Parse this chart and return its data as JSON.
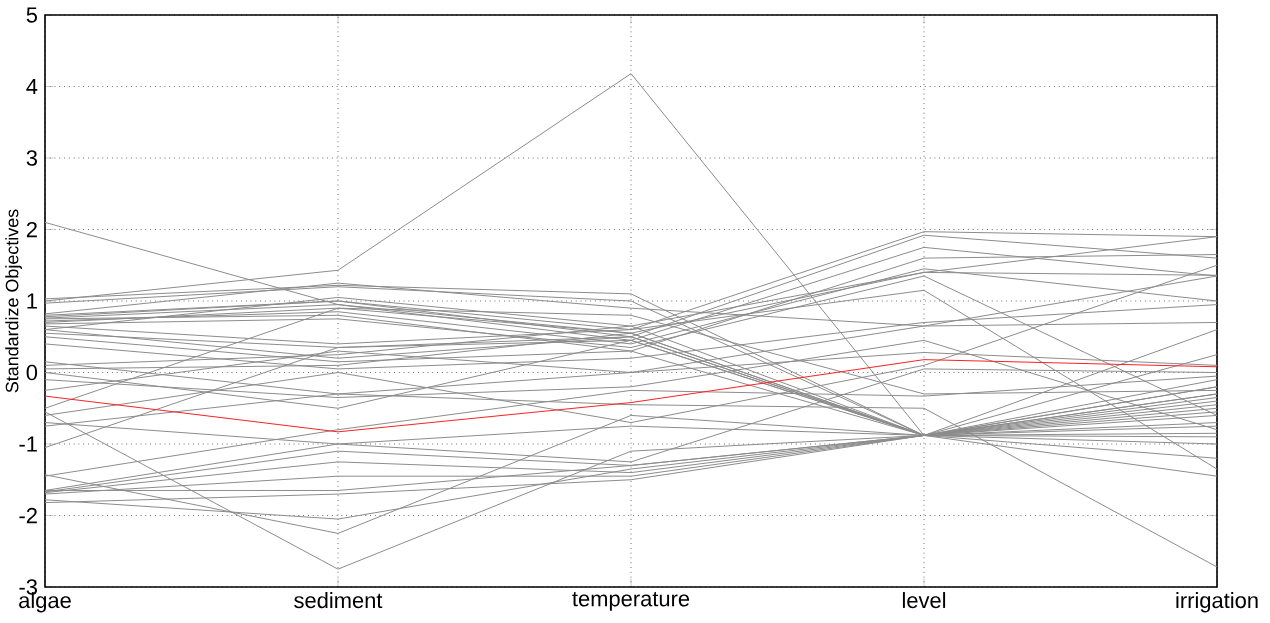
{
  "chart_data": {
    "type": "line",
    "ylabel": "Standardize Objectives",
    "categories": [
      "algae",
      "sediment",
      "temperature",
      "level",
      "irrigation"
    ],
    "ylim": [
      -3,
      5
    ],
    "yticks": [
      -3,
      -2,
      -1,
      0,
      1,
      2,
      3,
      4,
      5
    ],
    "grid": true,
    "series": [
      {
        "color": "#8c8c8c",
        "values": [
          2.1,
          0.95,
          0.55,
          -0.88,
          -0.6
        ]
      },
      {
        "color": "#8c8c8c",
        "values": [
          1.0,
          1.43,
          4.18,
          -0.88,
          -0.3
        ]
      },
      {
        "color": "#8c8c8c",
        "values": [
          1.03,
          1.22,
          1.1,
          -0.88,
          -0.5
        ]
      },
      {
        "color": "#8c8c8c",
        "values": [
          0.97,
          1.2,
          1.0,
          -0.88,
          -0.2
        ]
      },
      {
        "color": "#8c8c8c",
        "values": [
          0.82,
          1.25,
          0.9,
          0.65,
          1.35
        ]
      },
      {
        "color": "#8c8c8c",
        "values": [
          0.8,
          1.0,
          0.6,
          1.97,
          1.9
        ]
      },
      {
        "color": "#8c8c8c",
        "values": [
          0.78,
          1.0,
          0.5,
          1.92,
          1.6
        ]
      },
      {
        "color": "#8c8c8c",
        "values": [
          0.76,
          0.95,
          0.45,
          1.75,
          1.35
        ]
      },
      {
        "color": "#8c8c8c",
        "values": [
          0.75,
          0.8,
          0.3,
          1.6,
          1.65
        ]
      },
      {
        "color": "#8c8c8c",
        "values": [
          0.72,
          0.85,
          0.4,
          1.45,
          1.0
        ]
      },
      {
        "color": "#8c8c8c",
        "values": [
          0.7,
          0.9,
          0.55,
          1.4,
          1.36
        ]
      },
      {
        "color": "#8c8c8c",
        "values": [
          0.68,
          0.75,
          0.35,
          1.35,
          -0.6
        ]
      },
      {
        "color": "#8c8c8c",
        "values": [
          0.65,
          0.4,
          0.6,
          1.15,
          -1.35
        ]
      },
      {
        "color": "#8c8c8c",
        "values": [
          0.6,
          0.2,
          0.5,
          -0.88,
          -0.9
        ]
      },
      {
        "color": "#8c8c8c",
        "values": [
          0.55,
          0.35,
          0.45,
          -0.88,
          0.25
        ]
      },
      {
        "color": "#8c8c8c",
        "values": [
          0.5,
          0.15,
          0.3,
          -0.88,
          -0.1
        ]
      },
      {
        "color": "#8c8c8c",
        "values": [
          0.4,
          0.05,
          0.2,
          0.7,
          0.95
        ]
      },
      {
        "color": "#8c8c8c",
        "values": [
          0.15,
          -0.3,
          0.0,
          0.65,
          0.7
        ]
      },
      {
        "color": "#8c8c8c",
        "values": [
          0.1,
          0.25,
          0.65,
          -0.88,
          -0.4
        ]
      },
      {
        "color": "#8c8c8c",
        "values": [
          0.05,
          0.1,
          0.55,
          -0.88,
          0.6
        ]
      },
      {
        "color": "#8c8c8c",
        "values": [
          -0.1,
          -0.35,
          -0.2,
          0.45,
          -0.8
        ]
      },
      {
        "color": "#8c8c8c",
        "values": [
          -0.25,
          0.3,
          0.0,
          0.28,
          0.1
        ]
      },
      {
        "color": "#8c8c8c",
        "values": [
          -0.5,
          0.9,
          0.8,
          -0.3,
          -0.25
        ]
      },
      {
        "color": "#8c8c8c",
        "values": [
          -0.6,
          0.0,
          -0.7,
          0.1,
          1.5
        ]
      },
      {
        "color": "#8c8c8c",
        "values": [
          -0.7,
          -1.0,
          -0.75,
          -0.88,
          -1.2
        ]
      },
      {
        "color": "#8c8c8c",
        "values": [
          -0.75,
          -0.3,
          -0.45,
          -0.5,
          -2.72
        ]
      },
      {
        "color": "#8c8c8c",
        "values": [
          -1.05,
          0.35,
          0.5,
          -0.88,
          -0.55
        ]
      },
      {
        "color": "#8c8c8c",
        "values": [
          -1.45,
          -0.8,
          -0.25,
          -0.33,
          -0.05
        ]
      },
      {
        "color": "#8c8c8c",
        "values": [
          -1.43,
          -2.25,
          -0.6,
          -0.88,
          -0.7
        ]
      },
      {
        "color": "#8c8c8c",
        "values": [
          -1.65,
          -1.0,
          -1.25,
          0.05,
          0.0
        ]
      },
      {
        "color": "#8c8c8c",
        "values": [
          -1.67,
          -1.1,
          -1.3,
          -0.88,
          -0.35
        ]
      },
      {
        "color": "#8c8c8c",
        "values": [
          -1.68,
          -1.25,
          -1.4,
          -0.88,
          -0.45
        ]
      },
      {
        "color": "#8c8c8c",
        "values": [
          -1.7,
          -1.45,
          -1.45,
          -0.88,
          -0.85
        ]
      },
      {
        "color": "#8c8c8c",
        "values": [
          -1.65,
          -1.65,
          -1.3,
          -0.88,
          -1.0
        ]
      },
      {
        "color": "#8c8c8c",
        "values": [
          -1.78,
          -2.05,
          -1.35,
          -0.88,
          -1.45
        ]
      },
      {
        "color": "#8c8c8c",
        "values": [
          -1.82,
          -1.7,
          -1.5,
          -0.88,
          -0.2
        ]
      },
      {
        "color": "#8c8c8c",
        "values": [
          -0.55,
          -2.75,
          -1.1,
          -0.88,
          -0.75
        ]
      },
      {
        "color": "#8c8c8c",
        "values": [
          0.0,
          -0.5,
          0.45,
          -0.88,
          -0.3
        ]
      },
      {
        "color": "#8c8c8c",
        "values": [
          0.6,
          1.05,
          0.65,
          1.4,
          1.9
        ]
      },
      {
        "color": "#ff2020",
        "values": [
          -0.33,
          -0.83,
          -0.42,
          0.18,
          0.08
        ]
      }
    ]
  }
}
